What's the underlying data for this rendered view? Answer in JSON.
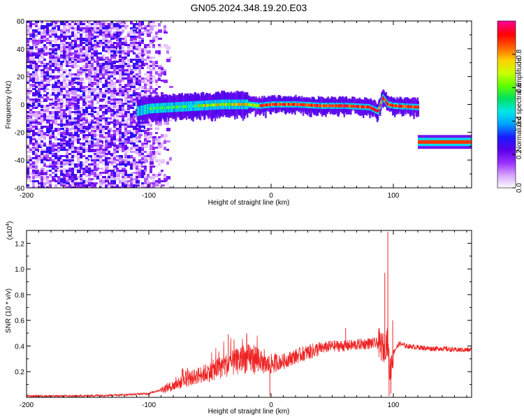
{
  "page_title": "GN05.2024.348.19.20.E03",
  "chart_data": [
    {
      "type": "heatmap",
      "xlabel": "Height of straight line (km)",
      "ylabel": "Frequency (Hz)",
      "xlim": [
        -200,
        164
      ],
      "ylim": [
        -60,
        60
      ],
      "x_ticks": [
        -200,
        -100,
        0,
        100
      ],
      "x_tick_labels": [
        "-200",
        "-100",
        "0",
        "100"
      ],
      "y_ticks": [
        60,
        40,
        20,
        0,
        -20,
        -40,
        -60
      ],
      "y_tick_labels": [
        "60",
        "40",
        "20",
        "0",
        "-20",
        "-40",
        "-60"
      ],
      "colorbar": {
        "label": "Normalized spectral amplitude",
        "range": [
          0,
          1
        ],
        "ticks": [
          0.0,
          0.2,
          0.4,
          0.6,
          0.8
        ],
        "tick_labels": [
          "0.0",
          "0.2",
          "0.4",
          "0.6",
          "0.8"
        ],
        "colors": [
          "#ffffff",
          "#d8a8ff",
          "#9b30ff",
          "#5b00e8",
          "#1a1aff",
          "#00a0ff",
          "#00e8e8",
          "#00e060",
          "#60ff00",
          "#c8ff00",
          "#ffd000",
          "#ff6000",
          "#ff0000",
          "#ff0090"
        ]
      },
      "noise_region": {
        "x_range": [
          -200,
          -90
        ],
        "y_range": [
          -60,
          60
        ]
      },
      "ridge": [
        {
          "x": -110,
          "y": -5
        },
        {
          "x": -100,
          "y": -3
        },
        {
          "x": -80,
          "y": -2
        },
        {
          "x": -60,
          "y": -1
        },
        {
          "x": -40,
          "y": 0
        },
        {
          "x": -20,
          "y": 0
        },
        {
          "x": -10,
          "y": -1
        },
        {
          "x": 0,
          "y": 0
        },
        {
          "x": 20,
          "y": 0
        },
        {
          "x": 40,
          "y": -1
        },
        {
          "x": 60,
          "y": -1
        },
        {
          "x": 80,
          "y": -2
        },
        {
          "x": 87,
          "y": -5
        },
        {
          "x": 91,
          "y": 5
        },
        {
          "x": 95,
          "y": 0
        },
        {
          "x": 100,
          "y": -1
        },
        {
          "x": 120,
          "y": -2
        }
      ],
      "offset_band": {
        "x_range": [
          120,
          164
        ],
        "y": -27
      }
    },
    {
      "type": "line",
      "xlabel": "Height of straight line (km)",
      "ylabel": "SNR (10 * v/v)",
      "y_scale_label": "(x10",
      "y_scale_exponent": "4",
      "xlim": [
        -200,
        164
      ],
      "ylim": [
        0,
        1.3
      ],
      "x_ticks": [
        -200,
        -100,
        0,
        100
      ],
      "x_tick_labels": [
        "-200",
        "-100",
        "0",
        "100"
      ],
      "y_ticks": [
        0.2,
        0.4,
        0.6,
        0.8,
        1.0,
        1.2
      ],
      "y_tick_labels": [
        "0.2",
        "0.4",
        "0.6",
        "0.8",
        "1.0",
        "1.2"
      ],
      "series": [
        {
          "color": "#ee2222",
          "x": [
            -200,
            -160,
            -120,
            -100,
            -90,
            -80,
            -70,
            -60,
            -50,
            -40,
            -30,
            -20,
            -10,
            -5,
            0,
            10,
            20,
            30,
            40,
            50,
            60,
            70,
            80,
            88,
            92,
            95,
            97,
            100,
            105,
            110,
            120,
            130,
            140,
            150,
            164
          ],
          "y": [
            0.01,
            0.01,
            0.02,
            0.03,
            0.06,
            0.09,
            0.13,
            0.17,
            0.2,
            0.24,
            0.27,
            0.3,
            0.3,
            0.25,
            0.26,
            0.28,
            0.32,
            0.35,
            0.38,
            0.4,
            0.4,
            0.41,
            0.42,
            0.42,
            0.38,
            0.45,
            0.2,
            0.35,
            0.42,
            0.4,
            0.39,
            0.38,
            0.38,
            0.37,
            0.37
          ]
        }
      ],
      "spikes": [
        {
          "x": -35,
          "y": 0.49
        },
        {
          "x": -20,
          "y": 0.5
        },
        {
          "x": -1,
          "y": 0.01
        },
        {
          "x": 61,
          "y": 0.54
        },
        {
          "x": 93,
          "y": 0.97
        },
        {
          "x": 95.5,
          "y": 1.29
        },
        {
          "x": 96.5,
          "y": 0.01
        },
        {
          "x": 98,
          "y": 0.03
        },
        {
          "x": 99.5,
          "y": 0.6
        }
      ]
    }
  ]
}
